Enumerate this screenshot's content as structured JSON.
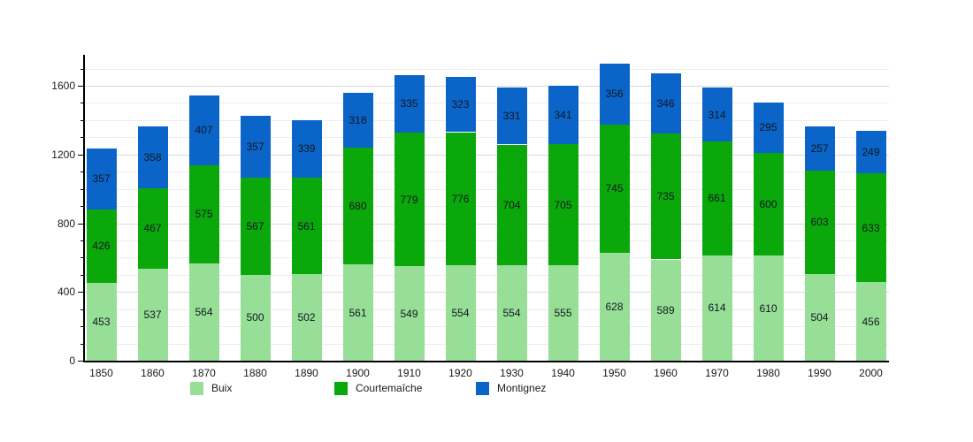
{
  "chart_data": {
    "type": "bar",
    "stacked": true,
    "title": "",
    "xlabel": "",
    "ylabel": "",
    "categories": [
      "1850",
      "1860",
      "1870",
      "1880",
      "1890",
      "1900",
      "1910",
      "1920",
      "1930",
      "1940",
      "1950",
      "1960",
      "1970",
      "1980",
      "1990",
      "2000"
    ],
    "series": [
      {
        "name": "Buix",
        "color": "#97df97",
        "values": [
          453,
          537,
          564,
          500,
          502,
          561,
          549,
          554,
          554,
          555,
          628,
          589,
          614,
          610,
          504,
          456
        ]
      },
      {
        "name": "Courtemaîche",
        "color": "#0ba80b",
        "values": [
          426,
          467,
          575,
          567,
          561,
          680,
          779,
          776,
          704,
          705,
          745,
          735,
          661,
          600,
          603,
          633
        ]
      },
      {
        "name": "Montignez",
        "color": "#0b64c8",
        "values": [
          357,
          358,
          407,
          357,
          339,
          318,
          335,
          323,
          331,
          341,
          356,
          346,
          314,
          295,
          257,
          249
        ]
      }
    ],
    "ylim": [
      0,
      1780
    ],
    "yticks_labeled": [
      0,
      400,
      800,
      1200,
      1600
    ],
    "grid_interval": 100,
    "grid": true,
    "value_labels": true,
    "legend_position": "bottom",
    "axis_color": "#000000",
    "gridline_color": "#ececec",
    "major_gridline_color": "#d9d9d9"
  }
}
